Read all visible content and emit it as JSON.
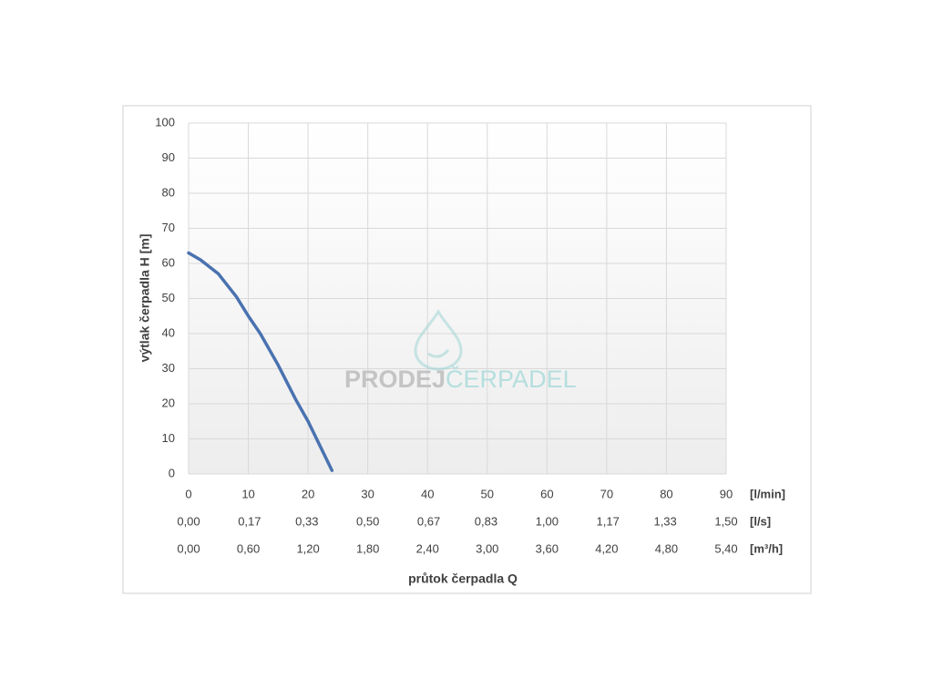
{
  "chart_data": {
    "type": "line",
    "x_label": "průtok čerpadla Q",
    "y_label": "výtlak čerpadla H [m]",
    "x_unit": "[l/min]",
    "xlim": [
      0,
      90
    ],
    "xticks": [
      0,
      10,
      20,
      30,
      40,
      50,
      60,
      70,
      80,
      90
    ],
    "ylim": [
      0,
      100
    ],
    "yticks": [
      0,
      10,
      20,
      30,
      40,
      50,
      60,
      70,
      80,
      90,
      100
    ],
    "grid": true,
    "color": "#4a72b0",
    "x": [
      0,
      2,
      5,
      8,
      10,
      12,
      15,
      18,
      20,
      22,
      24
    ],
    "values": [
      63,
      61,
      57,
      50.5,
      45,
      40,
      31,
      21,
      15,
      8,
      1
    ],
    "secondary_axes": [
      {
        "unit": "[l/s]",
        "xlim": [
          0,
          1.5
        ],
        "xticks": [
          {
            "value": 0,
            "label": "0,00"
          },
          {
            "value": 0.17,
            "label": "0,17"
          },
          {
            "value": 0.33,
            "label": "0,33"
          },
          {
            "value": 0.5,
            "label": "0,50"
          },
          {
            "value": 0.67,
            "label": "0,67"
          },
          {
            "value": 0.83,
            "label": "0,83"
          },
          {
            "value": 1,
            "label": "1,00"
          },
          {
            "value": 1.17,
            "label": "1,17"
          },
          {
            "value": 1.33,
            "label": "1,33"
          },
          {
            "value": 1.5,
            "label": "1,50"
          }
        ]
      },
      {
        "unit": "[m³/h]",
        "xlim": [
          0,
          5.4
        ],
        "xticks": [
          {
            "value": 0,
            "label": "0,00"
          },
          {
            "value": 0.6,
            "label": "0,60"
          },
          {
            "value": 1.2,
            "label": "1,20"
          },
          {
            "value": 1.8,
            "label": "1,80"
          },
          {
            "value": 2.4,
            "label": "2,40"
          },
          {
            "value": 3,
            "label": "3,00"
          },
          {
            "value": 3.6,
            "label": "3,60"
          },
          {
            "value": 4.2,
            "label": "4,20"
          },
          {
            "value": 4.8,
            "label": "4,80"
          },
          {
            "value": 5.4,
            "label": "5,40"
          }
        ]
      }
    ],
    "watermark": [
      "PRODEJ",
      "ČERPADEL"
    ]
  }
}
